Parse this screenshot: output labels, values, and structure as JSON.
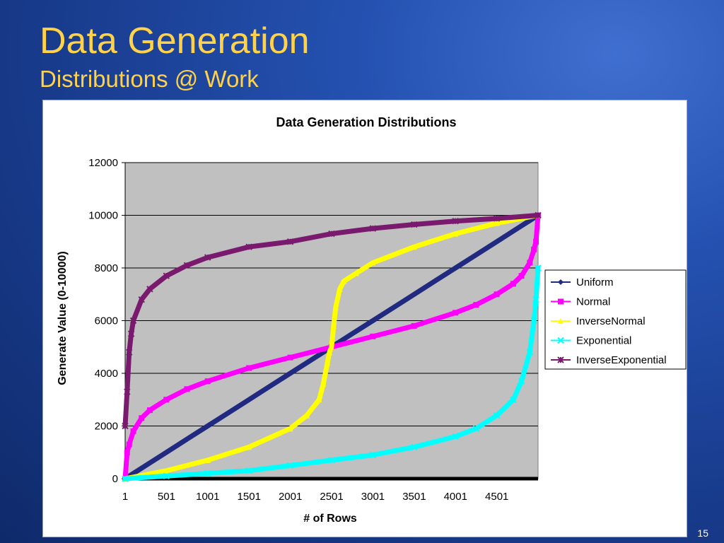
{
  "slide": {
    "title": "Data Generation",
    "subtitle": "Distributions @ Work",
    "page_number": "15"
  },
  "chart_data": {
    "type": "line",
    "title": "Data Generation Distributions",
    "xlabel": "# of Rows",
    "ylabel": "Generate Value (0-10000)",
    "xlim": [
      1,
      5000
    ],
    "ylim": [
      0,
      12000
    ],
    "x_ticks": [
      "1",
      "501",
      "1001",
      "1501",
      "2001",
      "2501",
      "3001",
      "3501",
      "4001",
      "4501"
    ],
    "x_tick_values": [
      1,
      501,
      1001,
      1501,
      2001,
      2501,
      3001,
      3501,
      4001,
      4501
    ],
    "y_ticks": [
      0,
      2000,
      4000,
      6000,
      8000,
      10000,
      12000
    ],
    "grid": true,
    "legend_position": "right",
    "plot_background": "#c0c0c0",
    "series": [
      {
        "name": "Uniform",
        "color": "#1f2a80",
        "marker": "diamond",
        "x": [
          1,
          250,
          500,
          750,
          1000,
          1250,
          1500,
          1750,
          2000,
          2250,
          2500,
          2750,
          3000,
          3250,
          3500,
          3750,
          4000,
          4250,
          4500,
          4750,
          5000
        ],
        "y": [
          0,
          500,
          1000,
          1500,
          2000,
          2500,
          3000,
          3500,
          4000,
          4500,
          5000,
          5500,
          6000,
          6500,
          7000,
          7500,
          8000,
          8500,
          9000,
          9500,
          10000
        ]
      },
      {
        "name": "Normal",
        "color": "#ff00ff",
        "marker": "square",
        "x": [
          1,
          25,
          50,
          100,
          200,
          300,
          500,
          750,
          1000,
          1500,
          2000,
          2500,
          3000,
          3500,
          4000,
          4250,
          4500,
          4700,
          4800,
          4900,
          4950,
          4975,
          5000
        ],
        "y": [
          0,
          1000,
          1300,
          1800,
          2300,
          2600,
          3000,
          3400,
          3700,
          4200,
          4600,
          5000,
          5400,
          5800,
          6300,
          6600,
          7000,
          7400,
          7700,
          8200,
          8700,
          9000,
          10000
        ]
      },
      {
        "name": "InverseNormal",
        "color": "#ffff00",
        "marker": "triangle",
        "x": [
          1,
          500,
          1000,
          1500,
          2000,
          2200,
          2350,
          2400,
          2450,
          2475,
          2500,
          2525,
          2550,
          2600,
          2650,
          2800,
          3000,
          3500,
          4000,
          4500,
          5000
        ],
        "y": [
          0,
          300,
          700,
          1200,
          1900,
          2400,
          3000,
          3600,
          4400,
          4800,
          5000,
          5800,
          6500,
          7200,
          7500,
          7800,
          8200,
          8800,
          9300,
          9700,
          10000
        ]
      },
      {
        "name": "Exponential",
        "color": "#00ffff",
        "marker": "x",
        "x": [
          1,
          500,
          1000,
          1500,
          2000,
          2500,
          3000,
          3500,
          4000,
          4250,
          4500,
          4700,
          4800,
          4900,
          4950,
          4975,
          5000
        ],
        "y": [
          0,
          100,
          200,
          300,
          500,
          700,
          900,
          1200,
          1600,
          1900,
          2400,
          3000,
          3700,
          4800,
          6000,
          6800,
          8000
        ]
      },
      {
        "name": "InverseExponential",
        "color": "#7a1a6e",
        "marker": "star",
        "x": [
          1,
          25,
          50,
          75,
          100,
          200,
          300,
          500,
          750,
          1000,
          1500,
          2000,
          2500,
          3000,
          3500,
          4000,
          4500,
          5000
        ],
        "y": [
          2000,
          3300,
          4800,
          5500,
          6000,
          6800,
          7200,
          7700,
          8100,
          8400,
          8800,
          9000,
          9300,
          9500,
          9650,
          9780,
          9880,
          10000
        ]
      }
    ]
  }
}
